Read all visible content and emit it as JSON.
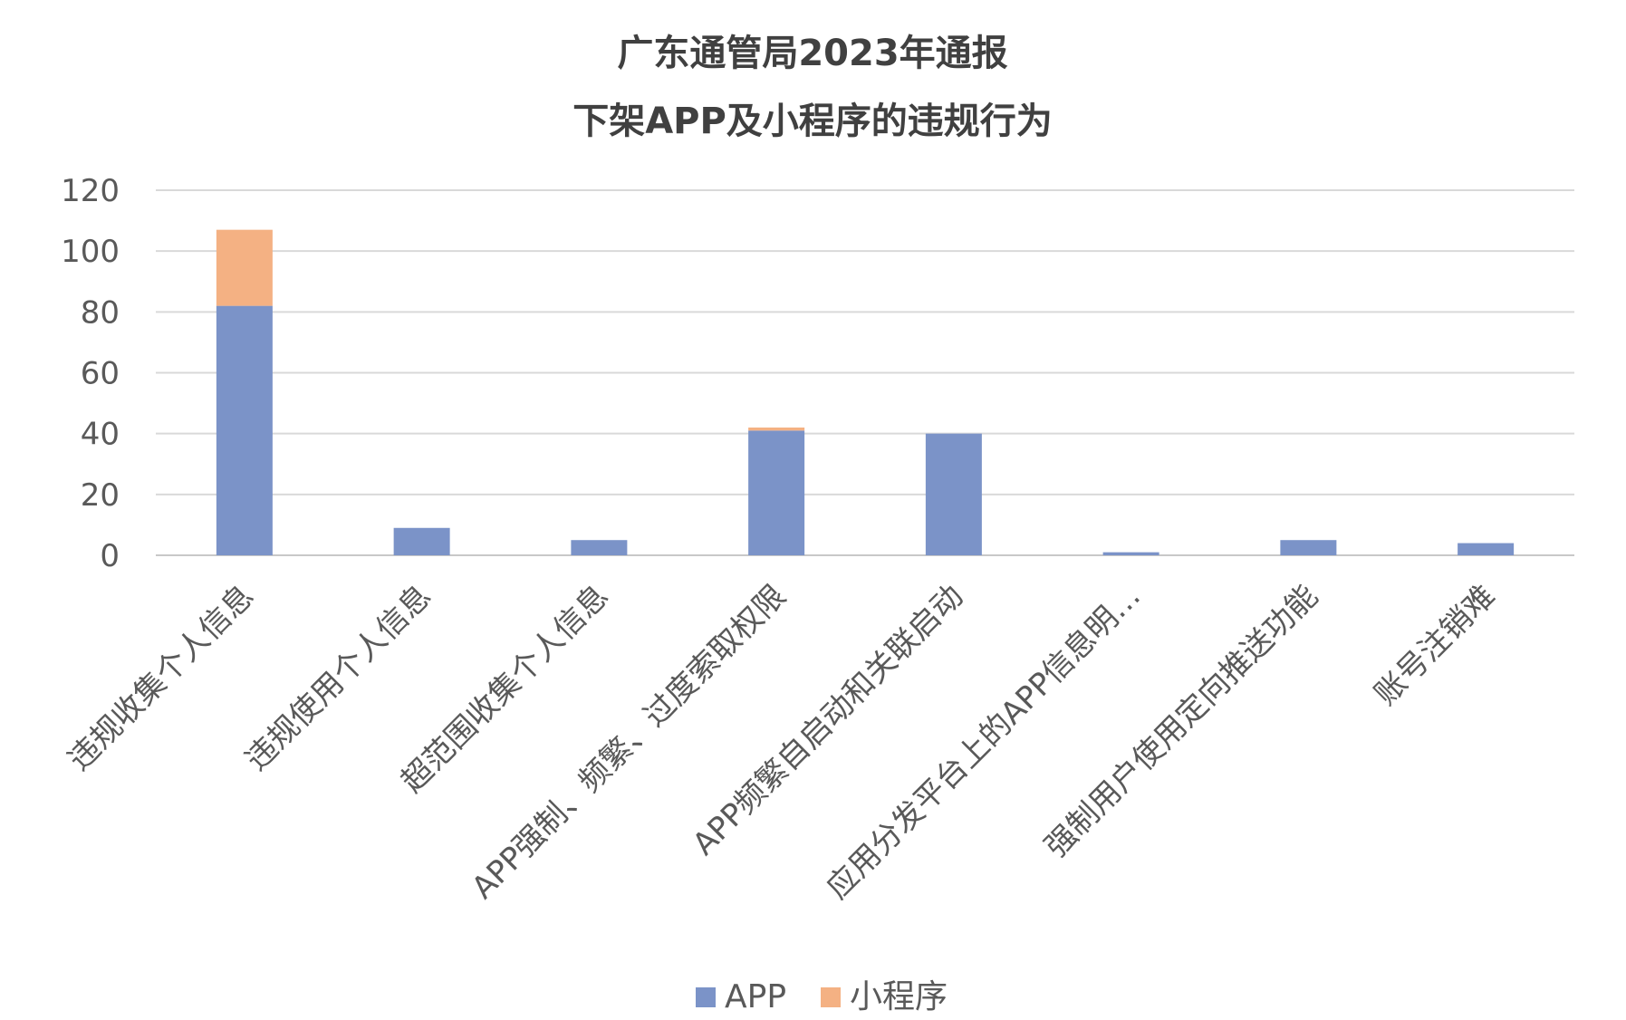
{
  "chart_data": {
    "type": "bar",
    "stacked": true,
    "title_lines": [
      "广东通管局2023年通报",
      "下架APP及小程序的违规行为"
    ],
    "categories": [
      "违规收集个人信息",
      "违规使用个人信息",
      "超范围收集个人信息",
      "APP强制、频繁、过度索取权限",
      "APP频繁自启动和关联启动",
      "应用分发平台上的APP信息明…",
      "强制用户使用定向推送功能",
      "账号注销难"
    ],
    "series": [
      {
        "name": "APP",
        "color": "#7b93c8",
        "values": [
          82,
          9,
          5,
          41,
          40,
          1,
          5,
          4
        ]
      },
      {
        "name": "小程序",
        "color": "#f4b183",
        "values": [
          25,
          0,
          0,
          1,
          0,
          0,
          0,
          0
        ]
      }
    ],
    "ylim": [
      0,
      120
    ],
    "yticks": [
      0,
      20,
      40,
      60,
      80,
      100,
      120
    ],
    "grid": true,
    "legend_position": "bottom"
  }
}
